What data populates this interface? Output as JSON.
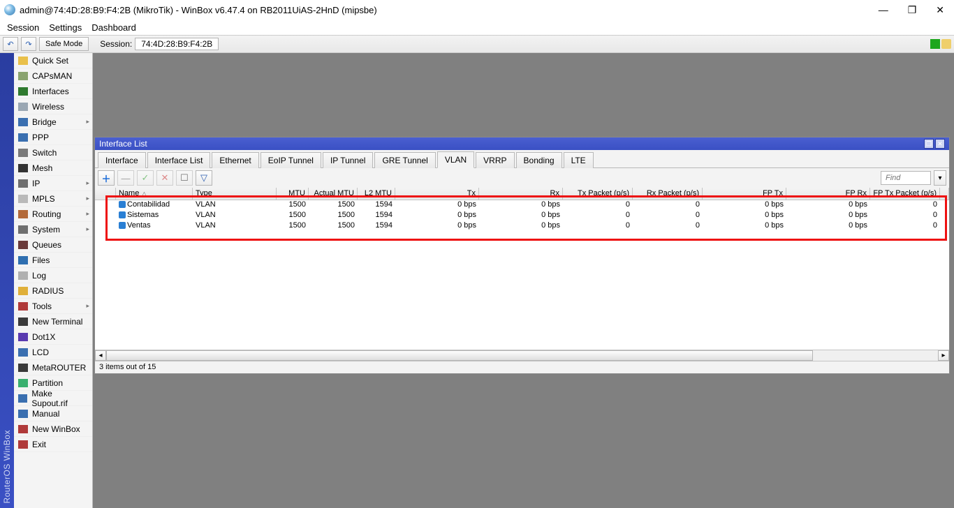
{
  "window": {
    "title": "admin@74:4D:28:B9:F4:2B (MikroTik) - WinBox v6.47.4 on RB2011UiAS-2HnD (mipsbe)"
  },
  "menubar": [
    "Session",
    "Settings",
    "Dashboard"
  ],
  "toolbar": {
    "undo_icon": "↶",
    "redo_icon": "↷",
    "safe_mode": "Safe Mode",
    "session_label": "Session:",
    "session_value": "74:4D:28:B9:F4:2B"
  },
  "vbar_text": "RouterOS  WinBox",
  "sidebar": [
    {
      "label": "Quick Set",
      "icon_color": "#e9c04a"
    },
    {
      "label": "CAPsMAN",
      "icon_color": "#8aa36f"
    },
    {
      "label": "Interfaces",
      "icon_color": "#2f7a2f"
    },
    {
      "label": "Wireless",
      "icon_color": "#9aa7b3"
    },
    {
      "label": "Bridge",
      "icon_color": "#3a6fb0",
      "caret": true
    },
    {
      "label": "PPP",
      "icon_color": "#3a6fb0"
    },
    {
      "label": "Switch",
      "icon_color": "#7a7a7a"
    },
    {
      "label": "Mesh",
      "icon_color": "#333333"
    },
    {
      "label": "IP",
      "icon_color": "#6f6f6f",
      "caret": true
    },
    {
      "label": "MPLS",
      "icon_color": "#b9b9b9",
      "caret": true
    },
    {
      "label": "Routing",
      "icon_color": "#b36a3a",
      "caret": true
    },
    {
      "label": "System",
      "icon_color": "#6f6f6f",
      "caret": true
    },
    {
      "label": "Queues",
      "icon_color": "#6a3a3a"
    },
    {
      "label": "Files",
      "icon_color": "#2f6fb0"
    },
    {
      "label": "Log",
      "icon_color": "#b0b0b0"
    },
    {
      "label": "RADIUS",
      "icon_color": "#e0b03a"
    },
    {
      "label": "Tools",
      "icon_color": "#b03a3a",
      "caret": true
    },
    {
      "label": "New Terminal",
      "icon_color": "#3a3a3a"
    },
    {
      "label": "Dot1X",
      "icon_color": "#5a3ab0"
    },
    {
      "label": "LCD",
      "icon_color": "#3a6fb0"
    },
    {
      "label": "MetaROUTER",
      "icon_color": "#3a3a3a"
    },
    {
      "label": "Partition",
      "icon_color": "#3ab06f"
    },
    {
      "label": "Make Supout.rif",
      "icon_color": "#3a6fb0"
    },
    {
      "label": "Manual",
      "icon_color": "#3a6fb0"
    },
    {
      "label": "New WinBox",
      "icon_color": "#b03a3a"
    },
    {
      "label": "Exit",
      "icon_color": "#b03a3a"
    }
  ],
  "inner": {
    "title": "Interface List",
    "tabs": [
      "Interface",
      "Interface List",
      "Ethernet",
      "EoIP Tunnel",
      "IP Tunnel",
      "GRE Tunnel",
      "VLAN",
      "VRRP",
      "Bonding",
      "LTE"
    ],
    "active_tab_index": 6,
    "toolbar_icons": {
      "add": "＋",
      "remove": "—",
      "enable": "✓",
      "disable": "✕",
      "comment": "☐",
      "filter": "▽"
    },
    "find_placeholder": "Find",
    "columns": [
      "Name",
      "Type",
      "MTU",
      "Actual MTU",
      "L2 MTU",
      "Tx",
      "Rx",
      "Tx Packet (p/s)",
      "Rx Packet (p/s)",
      "FP Tx",
      "FP Rx",
      "FP Tx Packet (p/s)"
    ],
    "rows": [
      {
        "name": "Contabilidad",
        "type": "VLAN",
        "mtu": "1500",
        "amtu": "1500",
        "l2": "1594",
        "tx": "0 bps",
        "rx": "0 bps",
        "txp": "0",
        "rxp": "0",
        "fptx": "0 bps",
        "fprx": "0 bps",
        "fptxp": "0"
      },
      {
        "name": "Sistemas",
        "type": "VLAN",
        "mtu": "1500",
        "amtu": "1500",
        "l2": "1594",
        "tx": "0 bps",
        "rx": "0 bps",
        "txp": "0",
        "rxp": "0",
        "fptx": "0 bps",
        "fprx": "0 bps",
        "fptxp": "0"
      },
      {
        "name": "Ventas",
        "type": "VLAN",
        "mtu": "1500",
        "amtu": "1500",
        "l2": "1594",
        "tx": "0 bps",
        "rx": "0 bps",
        "txp": "0",
        "rxp": "0",
        "fptx": "0 bps",
        "fprx": "0 bps",
        "fptxp": "0"
      }
    ],
    "status": "3 items out of 15",
    "highlight_color": "#ee1111"
  }
}
